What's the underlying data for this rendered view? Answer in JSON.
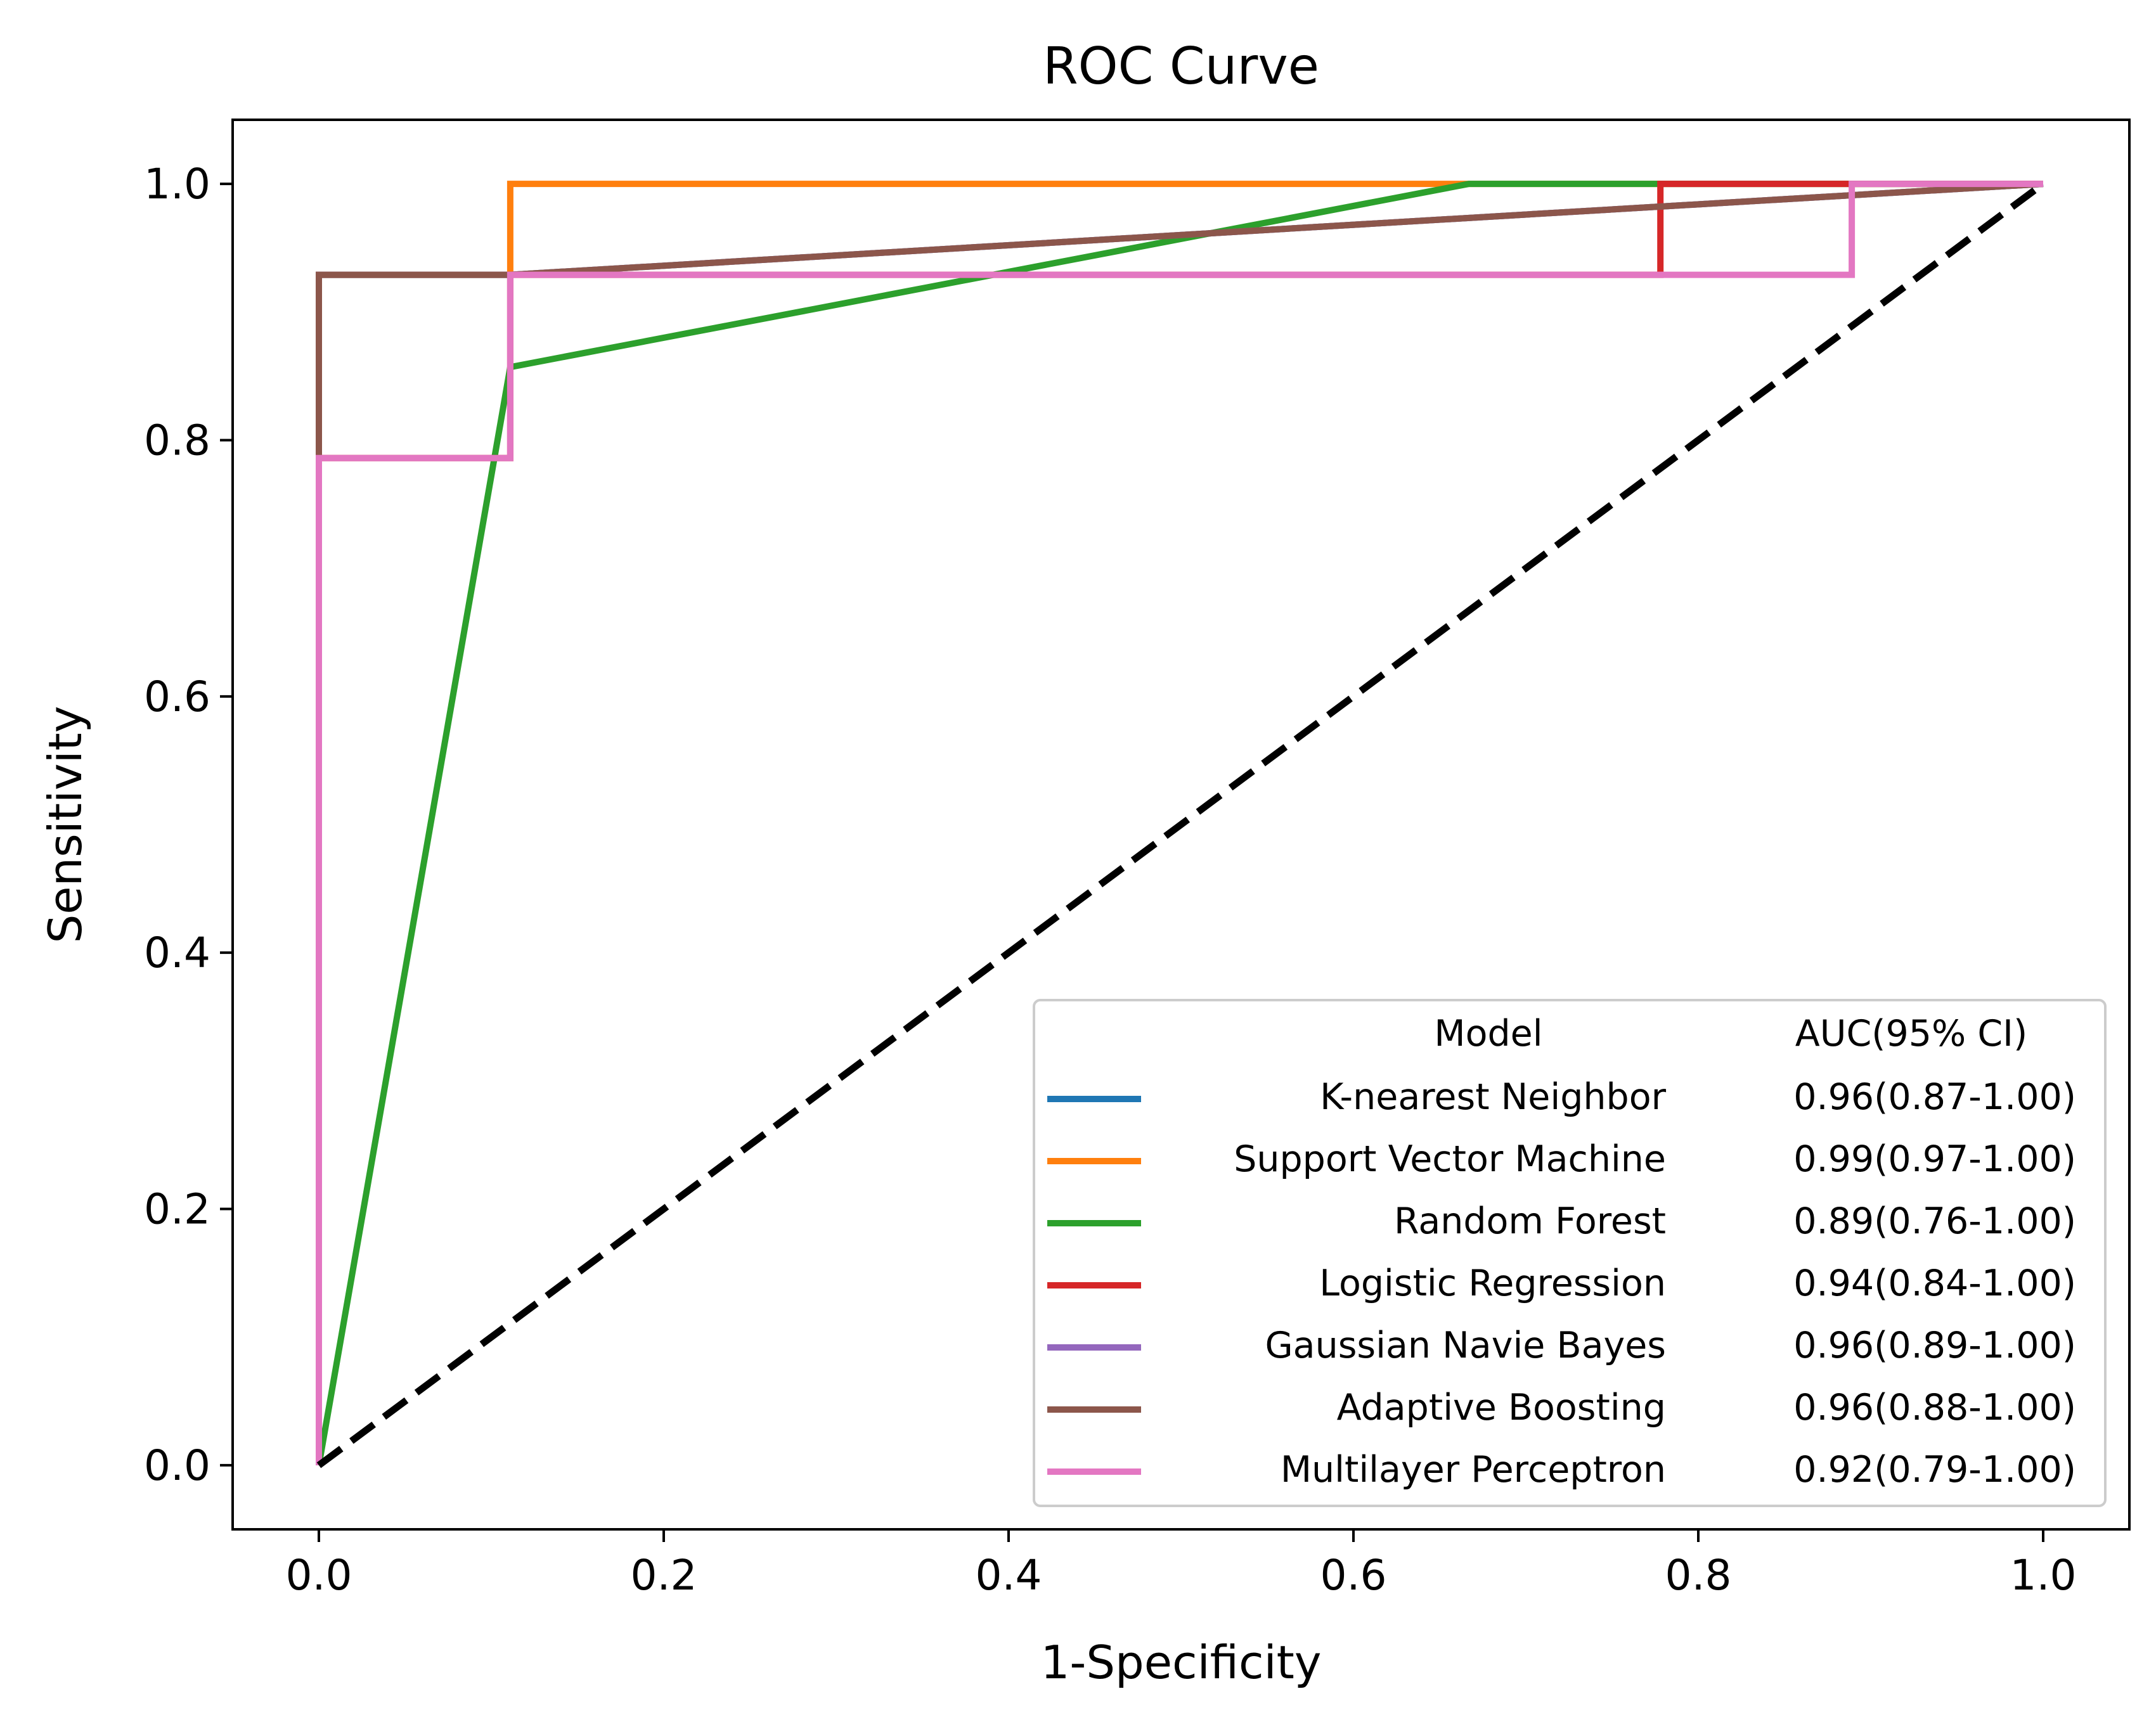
{
  "chart_data": {
    "type": "line",
    "title": "ROC Curve",
    "xlabel": "1-Specificity",
    "ylabel": "Sensitivity",
    "xlim": [
      -0.05,
      1.05
    ],
    "ylim": [
      -0.05,
      1.05
    ],
    "xticks": [
      0.0,
      0.2,
      0.4,
      0.6,
      0.8,
      1.0
    ],
    "yticks": [
      0.0,
      0.2,
      0.4,
      0.6,
      0.8,
      1.0
    ],
    "xtick_labels": [
      "0.0",
      "0.2",
      "0.4",
      "0.6",
      "0.8",
      "1.0"
    ],
    "ytick_labels": [
      "0.0",
      "0.2",
      "0.4",
      "0.6",
      "0.8",
      "1.0"
    ],
    "grid": false,
    "legend": {
      "position": "lower-right",
      "header_model": "Model",
      "header_auc": "AUC(95% CI)"
    },
    "reference_line": {
      "x": [
        0,
        1
      ],
      "y": [
        0,
        1
      ],
      "color": "#000000",
      "style": "dashed"
    },
    "series": [
      {
        "name": "K-nearest Neighbor",
        "auc": "0.96(0.87-1.00)",
        "color": "#1f77b4",
        "x": [
          0,
          0,
          0.111,
          1
        ],
        "y": [
          0,
          0.929,
          0.929,
          1
        ]
      },
      {
        "name": "Support Vector Machine",
        "auc": "0.99(0.97-1.00)",
        "color": "#ff7f0e",
        "x": [
          0,
          0,
          0.111,
          0.111,
          1
        ],
        "y": [
          0,
          0.929,
          0.929,
          1,
          1
        ]
      },
      {
        "name": "Random Forest",
        "auc": "0.89(0.76-1.00)",
        "color": "#2ca02c",
        "x": [
          0,
          0.111,
          0.667,
          1
        ],
        "y": [
          0,
          0.857,
          1,
          1
        ]
      },
      {
        "name": "Logistic Regression",
        "auc": "0.94(0.84-1.00)",
        "color": "#d62728",
        "x": [
          0,
          0,
          0.111,
          0.111,
          0.778,
          0.778,
          1
        ],
        "y": [
          0,
          0.786,
          0.786,
          0.929,
          0.929,
          1,
          1
        ]
      },
      {
        "name": "Gaussian Navie Bayes",
        "auc": "0.96(0.89-1.00)",
        "color": "#9467bd",
        "x": [
          0,
          0,
          0.111,
          1
        ],
        "y": [
          0,
          0.929,
          0.929,
          1
        ]
      },
      {
        "name": "Adaptive Boosting",
        "auc": "0.96(0.88-1.00)",
        "color": "#8c564b",
        "x": [
          0,
          0,
          0.111,
          1
        ],
        "y": [
          0,
          0.929,
          0.929,
          1
        ]
      },
      {
        "name": "Multilayer Perceptron",
        "auc": "0.92(0.79-1.00)",
        "color": "#e377c2",
        "x": [
          0,
          0,
          0.111,
          0.111,
          0.889,
          0.889,
          1
        ],
        "y": [
          0,
          0.786,
          0.786,
          0.929,
          0.929,
          1,
          1
        ]
      }
    ]
  }
}
